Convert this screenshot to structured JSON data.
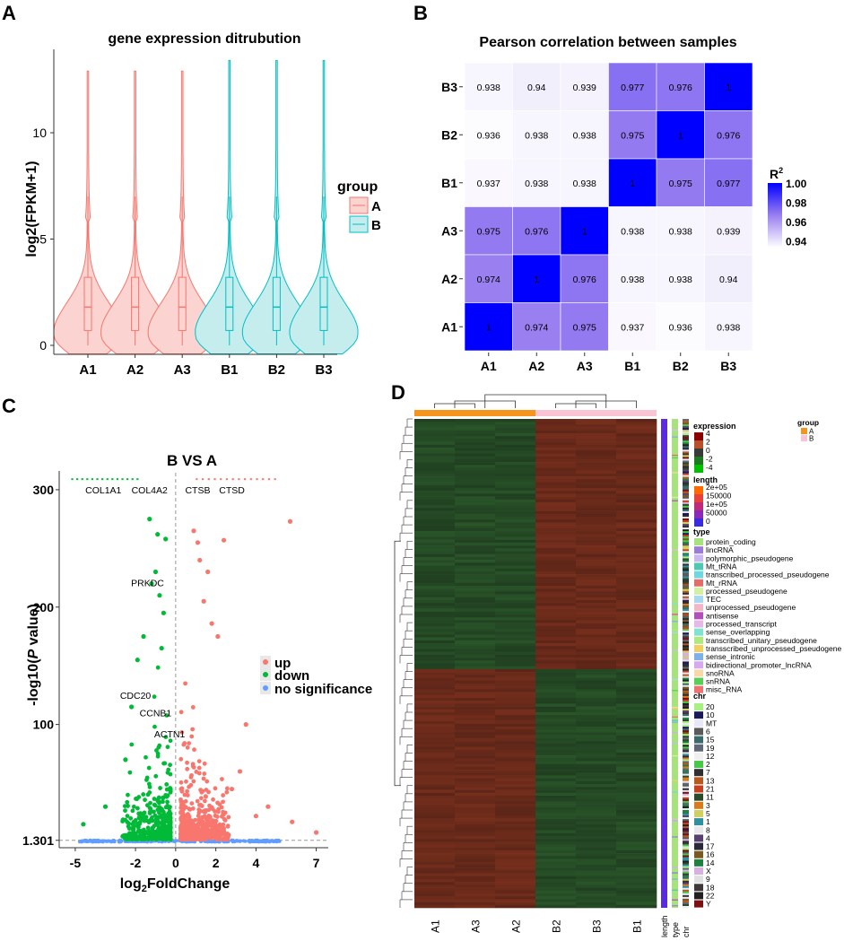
{
  "chart_data": [
    {
      "panel": "A",
      "type": "violin",
      "title": "gene expression ditrubution",
      "xlabel": "",
      "ylabel": "log2(FPKM+1)",
      "categories": [
        "A1",
        "A2",
        "A3",
        "B1",
        "B2",
        "B3"
      ],
      "groups": [
        "A",
        "A",
        "A",
        "B",
        "B",
        "B"
      ],
      "median": [
        1.8,
        1.8,
        1.8,
        1.8,
        1.8,
        1.8
      ],
      "q1": [
        0.7,
        0.7,
        0.7,
        0.7,
        0.7,
        0.7
      ],
      "q3": [
        3.2,
        3.2,
        3.2,
        3.2,
        3.2,
        3.2
      ],
      "whisker_max": [
        7.0,
        7.0,
        7.0,
        7.0,
        7.0,
        7.0
      ],
      "max": [
        12.9,
        12.9,
        12.9,
        13.4,
        13.4,
        13.4
      ],
      "ylim": [
        -0.4,
        14.0
      ],
      "yticks": [
        0,
        5,
        10
      ],
      "legend_title": "group",
      "legend_entries": [
        "A",
        "B"
      ],
      "legend_position": "right",
      "colors": {
        "A": "#F8766D",
        "B": "#00BFC4",
        "A_fill": "#FBD3D0",
        "B_fill": "#C5EDEE"
      }
    },
    {
      "panel": "B",
      "type": "heatmap",
      "title": "Pearson correlation between samples",
      "x_labels": [
        "A1",
        "A2",
        "A3",
        "B1",
        "B2",
        "B3"
      ],
      "y_labels_top_to_bottom": [
        "B3",
        "B2",
        "B1",
        "A3",
        "A2",
        "A1"
      ],
      "values": [
        [
          "0.938",
          "0.94",
          "0.939",
          "0.977",
          "0.976",
          "1"
        ],
        [
          "0.936",
          "0.938",
          "0.938",
          "0.975",
          "1",
          "0.976"
        ],
        [
          "0.937",
          "0.938",
          "0.938",
          "1",
          "0.975",
          "0.977"
        ],
        [
          "0.975",
          "0.976",
          "1",
          "0.938",
          "0.938",
          "0.939"
        ],
        [
          "0.974",
          "1",
          "0.976",
          "0.938",
          "0.938",
          "0.94"
        ],
        [
          "1",
          "0.974",
          "0.975",
          "0.937",
          "0.936",
          "0.938"
        ]
      ],
      "colorbar_title": "R",
      "colorbar_superscript": "2",
      "colorbar_ticks": [
        "1.00",
        "0.98",
        "0.96",
        "0.94"
      ],
      "range": [
        0.935,
        1.0
      ],
      "colors": {
        "low": "#FFFFFF",
        "high": "#0000FF"
      }
    },
    {
      "panel": "C",
      "type": "scatter",
      "title": "B VS A",
      "xlabel_prefix": "log",
      "xlabel_sub": "2",
      "xlabel_suffix": "FoldChange",
      "ylabel_prefix": "-log10(",
      "ylabel_italic": "P",
      "ylabel_suffix": " value)",
      "xlim": [
        -5.8,
        7.6
      ],
      "ylim": [
        -5,
        316
      ],
      "xticks": [
        "-5",
        "-2",
        "0",
        "2",
        "4",
        "7"
      ],
      "yticks": [
        "1.301",
        "100",
        "200",
        "300"
      ],
      "threshold_y": 1.301,
      "series": [
        {
          "name": "up",
          "color": "#F8766D"
        },
        {
          "name": "down",
          "color": "#00BA38"
        },
        {
          "name": "no significance",
          "color": "#619CFF"
        }
      ],
      "annotations": [
        {
          "label": "COL1A1",
          "x": -3.6,
          "y": 300
        },
        {
          "label": "COL4A2",
          "x": -1.3,
          "y": 300
        },
        {
          "label": "CTSB",
          "x": 1.1,
          "y": 300
        },
        {
          "label": "CTSD",
          "x": 2.8,
          "y": 300
        },
        {
          "label": "PRKDC",
          "x": -1.4,
          "y": 221
        },
        {
          "label": "CDC20",
          "x": -2.0,
          "y": 125
        },
        {
          "label": "CCNB1",
          "x": -1.0,
          "y": 110
        },
        {
          "label": "ACTN1",
          "x": -0.3,
          "y": 92
        }
      ]
    },
    {
      "panel": "D",
      "type": "heatmap",
      "title": "",
      "columns": [
        "A1",
        "A3",
        "A2",
        "B2",
        "B3",
        "B1"
      ],
      "column_groups": [
        "A",
        "A",
        "A",
        "B",
        "B",
        "B"
      ],
      "annotation_columns": [
        "length",
        "type",
        "chr"
      ],
      "legend": {
        "expression": {
          "title": "expression",
          "ticks": [
            "4",
            "2",
            "0",
            "-2",
            "-4"
          ]
        },
        "length": {
          "title": "length",
          "ticks": [
            "2e+05",
            "150000",
            "1e+05",
            "50000",
            "0"
          ]
        },
        "type": {
          "title": "type",
          "entries": [
            {
              "label": "protein_coding",
              "color": "#A6E37C"
            },
            {
              "label": "lincRNA",
              "color": "#9B7CD8"
            },
            {
              "label": "polymorphic_pseudogene",
              "color": "#C9B8F0"
            },
            {
              "label": "Mt_tRNA",
              "color": "#4CC9B0"
            },
            {
              "label": "transcribed_processed_pseudogene",
              "color": "#6FD7E0"
            },
            {
              "label": "Mt_rRNA",
              "color": "#E06C6C"
            },
            {
              "label": "processed_pseudogene",
              "color": "#D2F0A0"
            },
            {
              "label": "TEC",
              "color": "#A8D8F0"
            },
            {
              "label": "unprocessed_pseudogene",
              "color": "#F2B6C6"
            },
            {
              "label": "antisense",
              "color": "#B050B8"
            },
            {
              "label": "processed_transcript",
              "color": "#E6B8E6"
            },
            {
              "label": "sense_overlapping",
              "color": "#7FE3D0"
            },
            {
              "label": "transcribed_unitary_pseudogene",
              "color": "#B0E880"
            },
            {
              "label": "transscribed_unprocessed_pseudogene",
              "color": "#F2D060"
            },
            {
              "label": "sense_intronic",
              "color": "#7FB0E8"
            },
            {
              "label": "bidirectional_promoter_lncRNA",
              "color": "#D8A8F0"
            },
            {
              "label": "snoRNA",
              "color": "#F8D8A8"
            },
            {
              "label": "snRNA",
              "color": "#58D058"
            },
            {
              "label": "misc_RNA",
              "color": "#F07070"
            }
          ]
        },
        "chr": {
          "title": "chr",
          "entries": [
            {
              "label": "20",
              "color": "#A8F080"
            },
            {
              "label": "10",
              "color": "#1A1A5A"
            },
            {
              "label": "MT",
              "color": "#E8E8F8"
            },
            {
              "label": "6",
              "color": "#5A5A5A"
            },
            {
              "label": "15",
              "color": "#3A6A6A"
            },
            {
              "label": "19",
              "color": "#606878"
            },
            {
              "label": "12",
              "color": "#F0F0F0"
            },
            {
              "label": "2",
              "color": "#48C848"
            },
            {
              "label": "7",
              "color": "#303030"
            },
            {
              "label": "13",
              "color": "#B85A20"
            },
            {
              "label": "21",
              "color": "#C84020"
            },
            {
              "label": "11",
              "color": "#2A4A2A"
            },
            {
              "label": "3",
              "color": "#D87A20"
            },
            {
              "label": "5",
              "color": "#D0D060"
            },
            {
              "label": "1",
              "color": "#3090A0"
            },
            {
              "label": "8",
              "color": "#E8E8E8"
            },
            {
              "label": "4",
              "color": "#584070"
            },
            {
              "label": "17",
              "color": "#2A2A3A"
            },
            {
              "label": "16",
              "color": "#7A5A20"
            },
            {
              "label": "14",
              "color": "#208040"
            },
            {
              "label": "X",
              "color": "#D8B0E0"
            },
            {
              "label": "9",
              "color": "#E0E0E0"
            },
            {
              "label": "18",
              "color": "#403838"
            },
            {
              "label": "22",
              "color": "#202020"
            },
            {
              "label": "Y",
              "color": "#7A1010"
            }
          ]
        },
        "group": {
          "title": "group",
          "entries": [
            {
              "label": "A",
              "color": "#F7941D"
            },
            {
              "label": "B",
              "color": "#F9C5D5"
            }
          ]
        }
      }
    }
  ],
  "panel_labels": [
    "A",
    "B",
    "C",
    "D"
  ],
  "legends": {
    "c": [
      "up",
      "down",
      "no significance"
    ]
  }
}
